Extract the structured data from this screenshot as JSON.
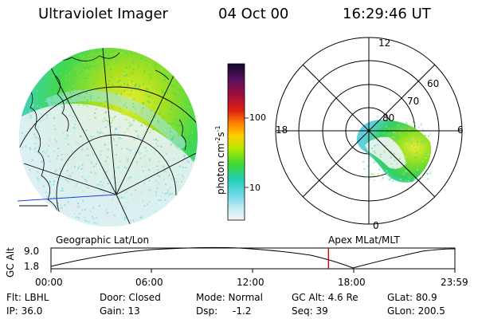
{
  "header": {
    "instrument": "Ultraviolet Imager",
    "date": "04 Oct 00",
    "time": "16:29:46 UT"
  },
  "colorbar": {
    "unit_prefix": "photon cm",
    "unit_exp1": "-2",
    "unit_mid": "s",
    "unit_exp2": "-1",
    "ticks": [
      "100",
      "10"
    ],
    "colors": [
      "#1a0830",
      "#5a1060",
      "#a0103a",
      "#e02010",
      "#ff8000",
      "#ffd000",
      "#a0e000",
      "#30d840",
      "#20d0c0",
      "#60d0e0",
      "#c0e8f0",
      "#f0f0f0"
    ]
  },
  "left_panel": {
    "title": "Geographic Lat/Lon"
  },
  "right_panel": {
    "title": "Apex MLat/MLT",
    "mlt_labels": {
      "top": "12",
      "left": "18",
      "right": "6",
      "bottom": "0"
    },
    "lat_labels": [
      "80",
      "70",
      "60"
    ]
  },
  "timeline": {
    "axis_label": "GC Alt",
    "y_ticks": [
      "9.0",
      "1.8"
    ],
    "x_ticks": [
      "00:00",
      "06:00",
      "12:00",
      "18:00",
      "23:59"
    ],
    "marker_color": "#e00000",
    "current_time_fraction": 0.687
  },
  "status": {
    "row1": [
      "Flt: LBHL",
      "Door: Closed",
      "Mode: Normal",
      "GC Alt: 4.6 Re",
      "GLat: 80.9"
    ],
    "row2_labels": [
      "IP: 36.0",
      "Gain: 13",
      "Dsp:",
      "Seq: 39",
      "GLon: 200.5"
    ],
    "dsp_value": "-1.2"
  }
}
